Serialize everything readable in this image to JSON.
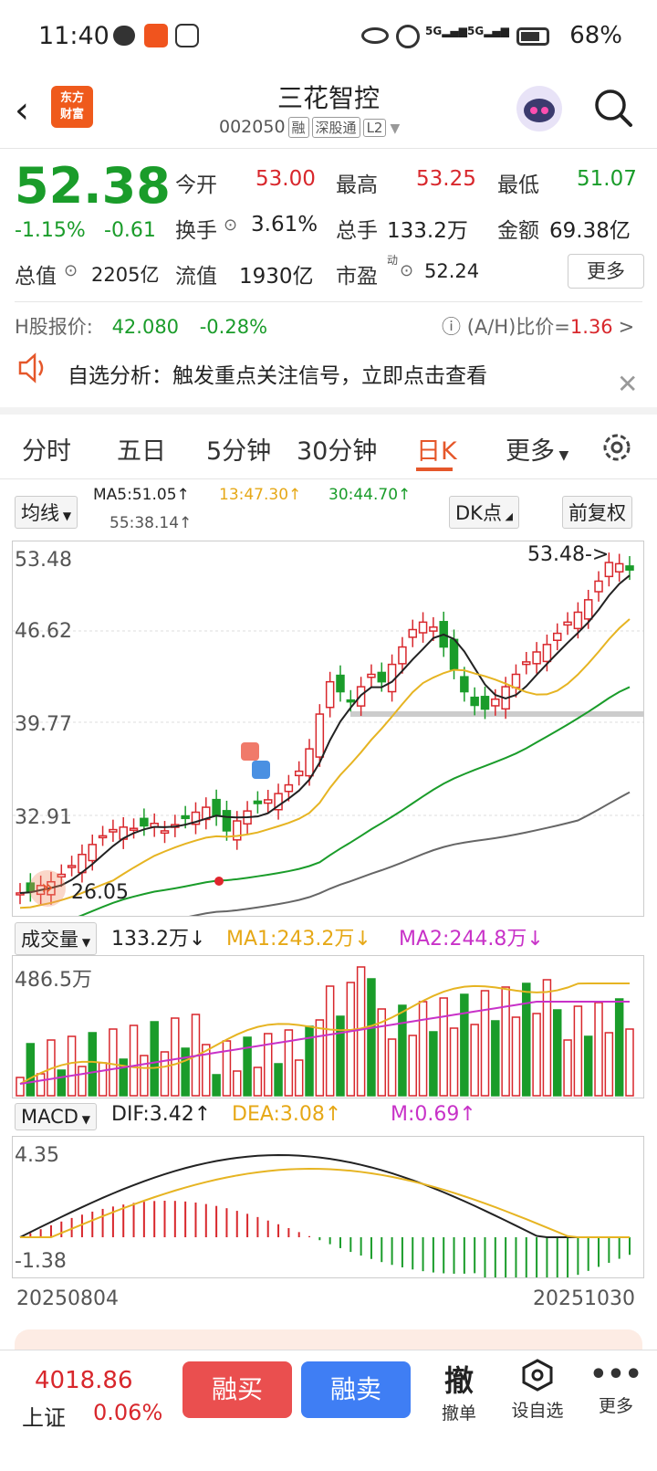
{
  "status_bar": {
    "time": "11:40",
    "battery": "68%"
  },
  "header": {
    "stock_name": "三花智控",
    "code": "002050",
    "tags": [
      "融",
      "深股通",
      "L2"
    ],
    "logo_line1": "东方",
    "logo_line2": "财富"
  },
  "quote": {
    "price": "52.38",
    "change_pct": "-1.15%",
    "change": "-0.61",
    "open_label": "今开",
    "open": "53.00",
    "high_label": "最高",
    "high": "53.25",
    "low_label": "最低",
    "low": "51.07",
    "turnover_label": "换手",
    "turnover": "3.61%",
    "volume_label": "总手",
    "volume": "133.2万",
    "amount_label": "金额",
    "amount": "69.38亿",
    "mcap_label": "总值",
    "mcap": "2205亿",
    "float_label": "流值",
    "float": "1930亿",
    "pe_label": "市盈",
    "pe_sup": "动",
    "pe": "52.24",
    "more_button": "更多"
  },
  "h_share": {
    "label": "H股报价:",
    "price": "42.080",
    "change": "-0.28%",
    "ah_label": "(A/H)比价=",
    "ah_value": "1.36",
    "arrow": ">"
  },
  "notice": {
    "text": "自选分析：触发重点关注信号，立即点击查看"
  },
  "tabs": [
    "分时",
    "五日",
    "5分钟",
    "30分钟",
    "日K",
    "更多"
  ],
  "active_tab": "日K",
  "kline_controls": {
    "ma_select": "均线",
    "ma5": "MA5:51.05↑",
    "ma10": "13:47.30↑",
    "ma30": "30:44.70↑",
    "ma55": "55:38.14↑",
    "dk_button": "DK点",
    "adjust_button": "前复权"
  },
  "kline_axis": {
    "y_labels": [
      "53.48",
      "46.62",
      "39.77",
      "32.91"
    ],
    "max_marker": "53.48->",
    "min_marker": "26.05"
  },
  "volume_panel": {
    "select": "成交量",
    "value": "133.2万↓",
    "ma1": "MA1:243.2万↓",
    "ma2": "MA2:244.8万↓",
    "y_label": "486.5万"
  },
  "macd_panel": {
    "select": "MACD",
    "dif": "DIF:3.42↑",
    "dea": "DEA:3.08↑",
    "m": "M:0.69↑",
    "y_top": "4.35",
    "y_bottom": "-1.38"
  },
  "date_range": {
    "start": "20250804",
    "end": "20251030"
  },
  "bottom_bar": {
    "index_value": "4018.86",
    "index_name": "上证",
    "index_change": "0.06%",
    "buy_button": "融买",
    "sell_button": "融卖",
    "cancel_icon_char": "撤",
    "cancel_label": "撤单",
    "watch_label": "设自选",
    "more_label": "更多"
  },
  "colors": {
    "up": "#d8272c",
    "down": "#1a9c2a",
    "accent": "#e5572a",
    "buy": "#ea4f4f",
    "sell": "#3f7ef4"
  }
}
